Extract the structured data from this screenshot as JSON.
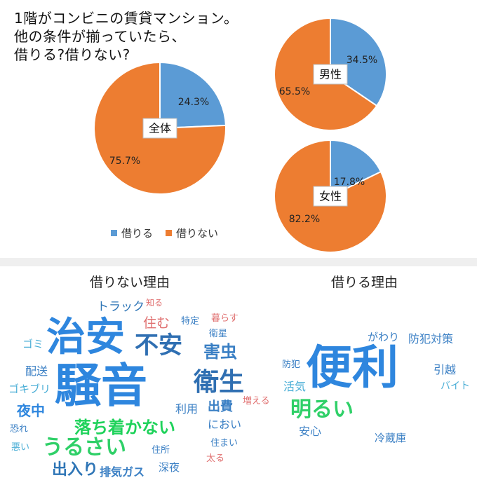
{
  "title": {
    "lines": [
      "1階がコンビニの賃貸マンション。",
      "他の条件が揃っていたら、",
      "借りる?借りない?"
    ]
  },
  "colors": {
    "borrow": "#5b9bd5",
    "not_borrow": "#ed7d31"
  },
  "chart_data": {
    "type": "pie",
    "categories": [
      "借りる",
      "借りない"
    ],
    "legend": {
      "position": "bottom",
      "labels": [
        "借りる",
        "借りない"
      ]
    },
    "charts": [
      {
        "label": "全体",
        "values": [
          24.3,
          75.7
        ],
        "value_labels": [
          "24.3%",
          "75.7%"
        ]
      },
      {
        "label": "男性",
        "values": [
          34.5,
          65.5
        ],
        "value_labels": [
          "34.5%",
          "65.5%"
        ]
      },
      {
        "label": "女性",
        "values": [
          17.8,
          82.2
        ],
        "value_labels": [
          "17.8%",
          "82.2%"
        ]
      }
    ]
  },
  "wordclouds": {
    "not_borrow": {
      "title": "借りない理由",
      "words": [
        "トラック",
        "知る",
        "住む",
        "特定",
        "暮らす",
        "衛星",
        "ゴミ",
        "治安",
        "不安",
        "害虫",
        "配送",
        "騒音",
        "衛生",
        "ゴキブリ",
        "夜中",
        "利用",
        "出費",
        "増える",
        "恐れ",
        "落ち着かない",
        "におい",
        "悪い",
        "うるさい",
        "住所",
        "住まい",
        "出入り",
        "排気ガス",
        "深夜",
        "太る"
      ]
    },
    "borrow": {
      "title": "借りる理由",
      "words": [
        "がわり",
        "防犯対策",
        "防犯",
        "便利",
        "引越",
        "活気",
        "バイト",
        "明るい",
        "安心",
        "冷蔵庫"
      ]
    }
  }
}
